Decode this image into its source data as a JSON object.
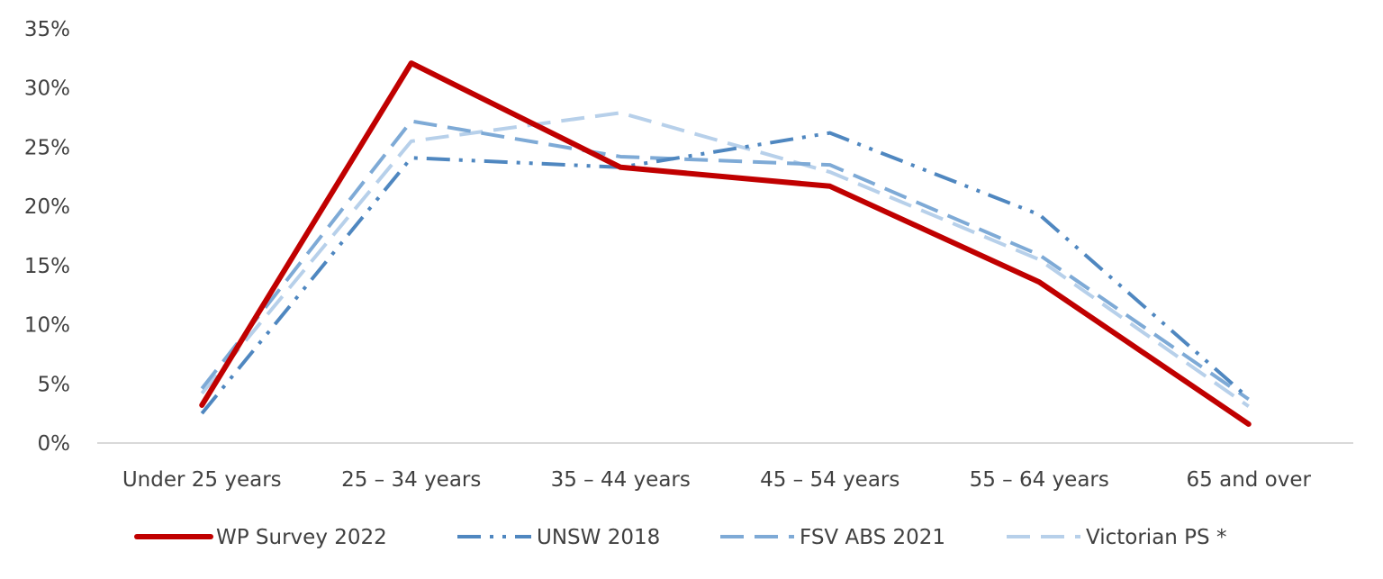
{
  "chart_data": {
    "type": "line",
    "title": "",
    "xlabel": "",
    "ylabel": "",
    "categories": [
      "Under 25 years",
      "25 – 34 years",
      "35 – 44 years",
      "45 – 54 years",
      "55 – 64 years",
      "65 and over"
    ],
    "ylim": [
      0,
      35
    ],
    "yticks": [
      0,
      5,
      10,
      15,
      20,
      25,
      30,
      35
    ],
    "ytick_labels": [
      "0%",
      "5%",
      "10%",
      "15%",
      "20%",
      "25%",
      "30%",
      "35%"
    ],
    "grid": false,
    "legend_position": "bottom",
    "series": [
      {
        "name": "WP Survey 2022",
        "values": [
          3.2,
          32.1,
          23.3,
          21.7,
          13.6,
          1.6
        ],
        "color": "#c00000",
        "style": "solid"
      },
      {
        "name": "UNSW 2018",
        "values": [
          2.5,
          24.1,
          23.3,
          26.2,
          19.3,
          3.8
        ],
        "color": "#4f87c0",
        "style": "dash-dot-dot"
      },
      {
        "name": "FSV ABS 2021",
        "values": [
          4.6,
          27.2,
          24.2,
          23.5,
          15.9,
          3.7
        ],
        "color": "#7eaad6",
        "style": "long-dash"
      },
      {
        "name": "Victorian PS *",
        "values": [
          4.2,
          25.5,
          27.9,
          22.9,
          15.5,
          3.1
        ],
        "color": "#b7d0ea",
        "style": "long-dash"
      }
    ]
  }
}
